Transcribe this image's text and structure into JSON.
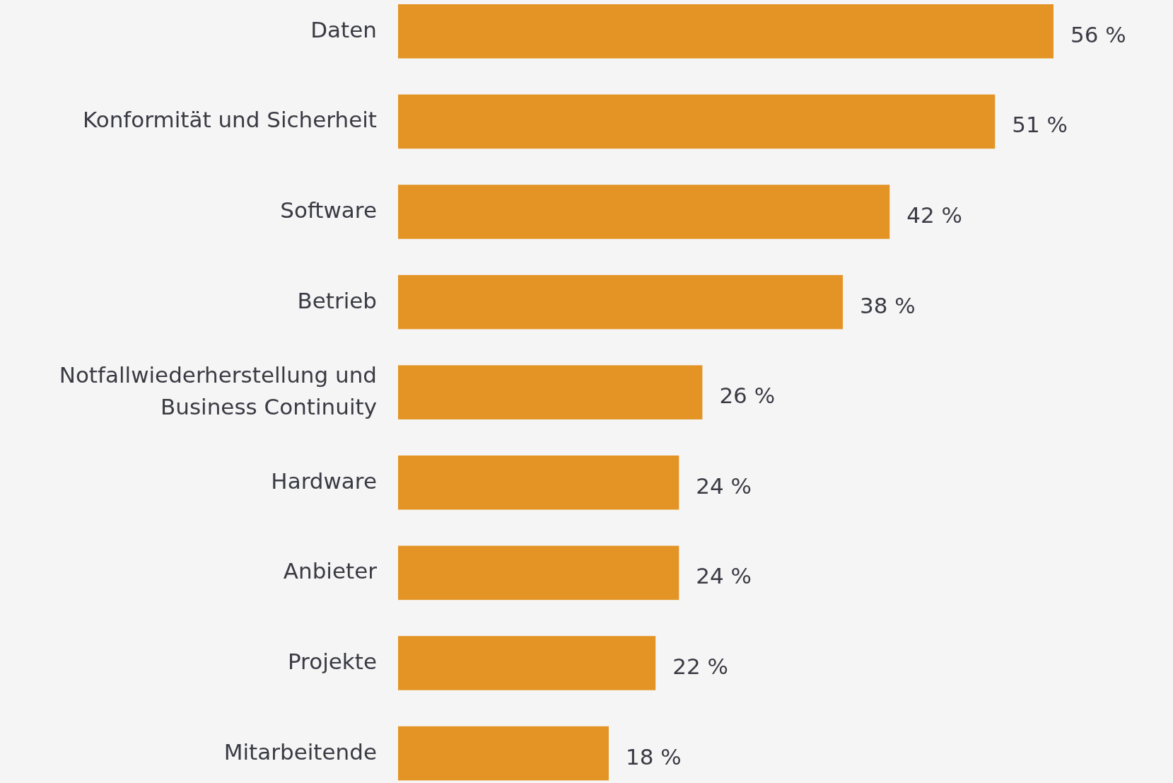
{
  "chart_data": {
    "type": "bar",
    "orientation": "horizontal",
    "categories": [
      "Daten",
      "Konformität und Sicherheit",
      "Software",
      "Betrieb",
      "Notfallwiederherstellung und Business Continuity",
      "Hardware",
      "Anbieter",
      "Projekte",
      "Mitarbeitende"
    ],
    "values": [
      56,
      51,
      42,
      38,
      26,
      24,
      24,
      22,
      18
    ],
    "value_labels": [
      "56 %",
      "51 %",
      "42 %",
      "38 %",
      "26 %",
      "24 %",
      "24 %",
      "22 %",
      "18 %"
    ],
    "color": "#e39425"
  }
}
